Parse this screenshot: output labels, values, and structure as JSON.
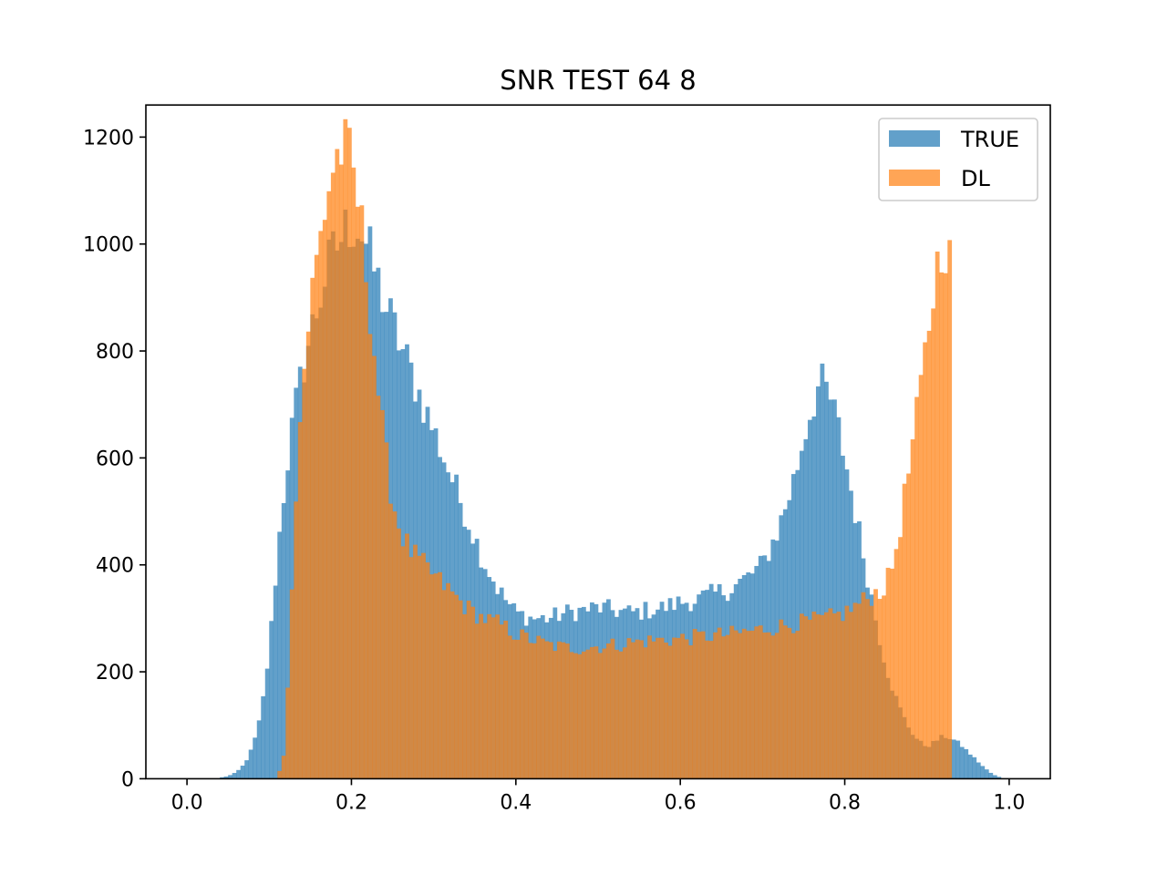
{
  "chart_data": {
    "type": "bar",
    "title": "SNR TEST 64 8",
    "xlabel": "",
    "ylabel": "",
    "xlim": [
      -0.05,
      1.05
    ],
    "ylim": [
      0,
      1260
    ],
    "x_ticks": [
      "0.0",
      "0.2",
      "0.4",
      "0.6",
      "0.8",
      "1.0"
    ],
    "x_tick_values": [
      0.0,
      0.2,
      0.4,
      0.6,
      0.8,
      1.0
    ],
    "y_ticks": [
      "0",
      "200",
      "400",
      "600",
      "800",
      "1000",
      "1200"
    ],
    "y_tick_values": [
      0,
      200,
      400,
      600,
      800,
      1000,
      1200
    ],
    "grid": false,
    "legend_position": "top-right",
    "bin_width": 0.005,
    "series": [
      {
        "name": "TRUE",
        "color": "#1f77b4",
        "alpha": 0.7,
        "x": [
          0.04,
          0.05,
          0.06,
          0.07,
          0.08,
          0.09,
          0.1,
          0.11,
          0.12,
          0.13,
          0.14,
          0.15,
          0.16,
          0.17,
          0.18,
          0.19,
          0.2,
          0.21,
          0.22,
          0.23,
          0.24,
          0.25,
          0.26,
          0.27,
          0.28,
          0.29,
          0.3,
          0.31,
          0.32,
          0.33,
          0.34,
          0.35,
          0.36,
          0.37,
          0.38,
          0.39,
          0.4,
          0.42,
          0.44,
          0.46,
          0.48,
          0.5,
          0.52,
          0.54,
          0.56,
          0.58,
          0.6,
          0.62,
          0.64,
          0.66,
          0.68,
          0.7,
          0.72,
          0.74,
          0.75,
          0.76,
          0.77,
          0.78,
          0.79,
          0.8,
          0.81,
          0.82,
          0.83,
          0.84,
          0.85,
          0.86,
          0.87,
          0.88,
          0.89,
          0.9,
          0.91,
          0.92,
          0.93,
          0.94,
          0.95,
          0.96,
          0.97,
          0.98,
          0.99
        ],
        "values": [
          2,
          5,
          12,
          28,
          60,
          120,
          240,
          420,
          570,
          680,
          760,
          830,
          890,
          950,
          990,
          1020,
          1040,
          1030,
          990,
          940,
          890,
          850,
          810,
          770,
          730,
          690,
          650,
          610,
          570,
          530,
          490,
          450,
          410,
          380,
          350,
          330,
          310,
          300,
          300,
          310,
          315,
          320,
          315,
          310,
          315,
          320,
          330,
          335,
          345,
          355,
          375,
          400,
          470,
          570,
          640,
          700,
          740,
          720,
          670,
          600,
          520,
          440,
          360,
          280,
          210,
          160,
          120,
          90,
          70,
          60,
          70,
          80,
          75,
          65,
          50,
          35,
          20,
          8,
          2
        ]
      },
      {
        "name": "DL",
        "color": "#ff7f0e",
        "alpha": 0.7,
        "x": [
          0.11,
          0.12,
          0.13,
          0.14,
          0.15,
          0.16,
          0.17,
          0.18,
          0.19,
          0.2,
          0.21,
          0.22,
          0.23,
          0.24,
          0.25,
          0.26,
          0.27,
          0.28,
          0.29,
          0.3,
          0.32,
          0.34,
          0.36,
          0.38,
          0.4,
          0.42,
          0.44,
          0.46,
          0.48,
          0.5,
          0.52,
          0.54,
          0.56,
          0.58,
          0.6,
          0.62,
          0.64,
          0.66,
          0.68,
          0.7,
          0.72,
          0.74,
          0.76,
          0.78,
          0.8,
          0.82,
          0.84,
          0.85,
          0.86,
          0.87,
          0.88,
          0.89,
          0.9,
          0.91,
          0.92,
          0.93
        ],
        "values": [
          0,
          60,
          480,
          730,
          890,
          990,
          1090,
          1160,
          1180,
          1150,
          1060,
          920,
          760,
          620,
          520,
          460,
          430,
          410,
          395,
          380,
          350,
          320,
          300,
          290,
          270,
          260,
          250,
          245,
          245,
          248,
          250,
          255,
          258,
          260,
          262,
          265,
          268,
          270,
          275,
          280,
          285,
          290,
          295,
          300,
          310,
          330,
          350,
          360,
          410,
          500,
          600,
          700,
          820,
          940,
          1020,
          950
        ]
      }
    ]
  }
}
